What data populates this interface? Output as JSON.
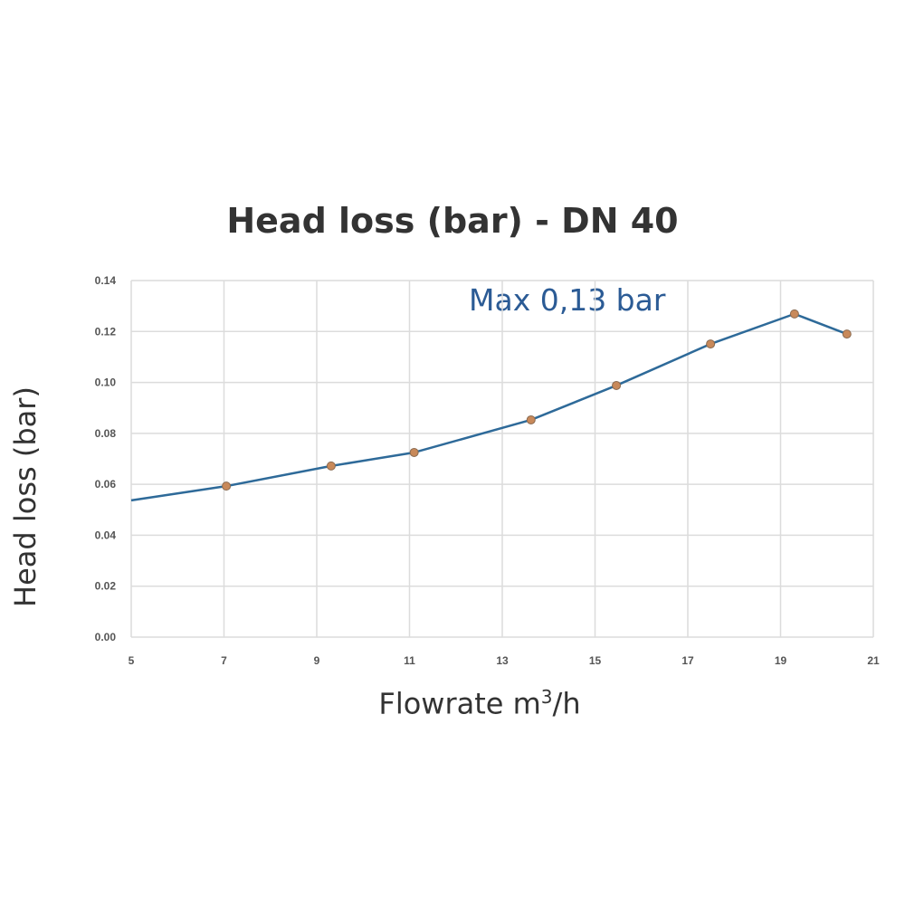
{
  "chart_data": {
    "type": "line",
    "title": "Head loss (bar) - DN 40",
    "xlabel": "Flowrate m³/h",
    "xlabel_main": "Flowrate m",
    "xlabel_sup": "3",
    "xlabel_tail": "/h",
    "ylabel": "Head loss (bar)",
    "annotation": "Max 0,13 bar",
    "xlim": [
      5,
      21
    ],
    "ylim": [
      0,
      0.14
    ],
    "xticks": [
      5,
      7,
      9,
      11,
      13,
      15,
      17,
      19,
      21
    ],
    "yticks": [
      "0.00",
      "0.02",
      "0.04",
      "0.06",
      "0.08",
      "0.10",
      "0.12",
      "0.14"
    ],
    "grid": true,
    "series": [
      {
        "name": "Head loss",
        "color": "#2e6a99",
        "marker_color": "#c8895a",
        "x": [
          5,
          7.05,
          9.31,
          11.1,
          13.62,
          15.46,
          17.49,
          19.3,
          20.43
        ],
        "y": [
          0.0537,
          0.0593,
          0.0672,
          0.0725,
          0.0853,
          0.0988,
          0.1151,
          0.1269,
          0.119
        ],
        "markers": [
          false,
          true,
          true,
          true,
          true,
          true,
          true,
          true,
          true
        ]
      }
    ]
  }
}
